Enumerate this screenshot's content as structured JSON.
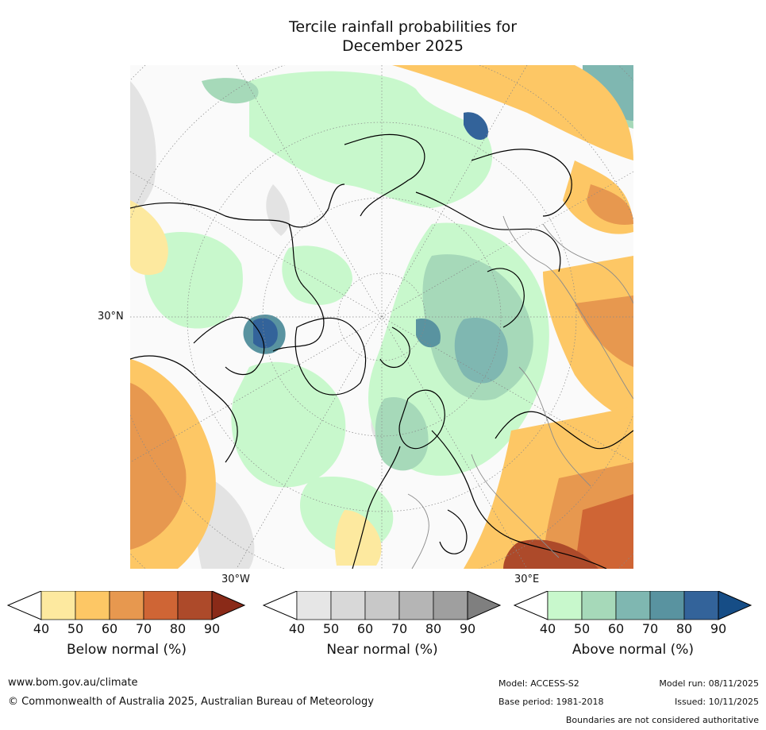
{
  "title_line1": "Tercile rainfall probabilities for",
  "title_line2": "December 2025",
  "map": {
    "lat_label": "30°N",
    "lon_label_left": "30°W",
    "lon_label_right": "30°E"
  },
  "colorbars": [
    {
      "caption": "Below normal (%)",
      "ticks": [
        "40",
        "50",
        "60",
        "70",
        "80",
        "90"
      ],
      "colors": [
        "#ffffff",
        "#fde99f",
        "#fdc765",
        "#e7984f",
        "#cf6535",
        "#ad4a2a",
        "#8a2a18"
      ]
    },
    {
      "caption": "Near normal (%)",
      "ticks": [
        "40",
        "50",
        "60",
        "70",
        "80",
        "90"
      ],
      "colors": [
        "#ffffff",
        "#e6e6e6",
        "#d8d8d8",
        "#c8c8c8",
        "#b5b5b5",
        "#9f9f9f",
        "#7f7f7f"
      ]
    },
    {
      "caption": "Above normal (%)",
      "ticks": [
        "40",
        "50",
        "60",
        "70",
        "80",
        "90"
      ],
      "colors": [
        "#ffffff",
        "#c8f8cc",
        "#a6d9b9",
        "#7fb7b1",
        "#5993a0",
        "#33639a",
        "#164d86"
      ]
    }
  ],
  "footer": {
    "website": "www.bom.gov.au/climate",
    "copyright": "© Commonwealth of Australia 2025, Australian Bureau of Meteorology",
    "model": "Model: ACCESS-S2",
    "model_run": "Model run: 08/11/2025",
    "base_period": "Base period: 1981-2018",
    "issued": "Issued: 10/11/2025",
    "disclaimer": "Boundaries are not considered authoritative"
  }
}
